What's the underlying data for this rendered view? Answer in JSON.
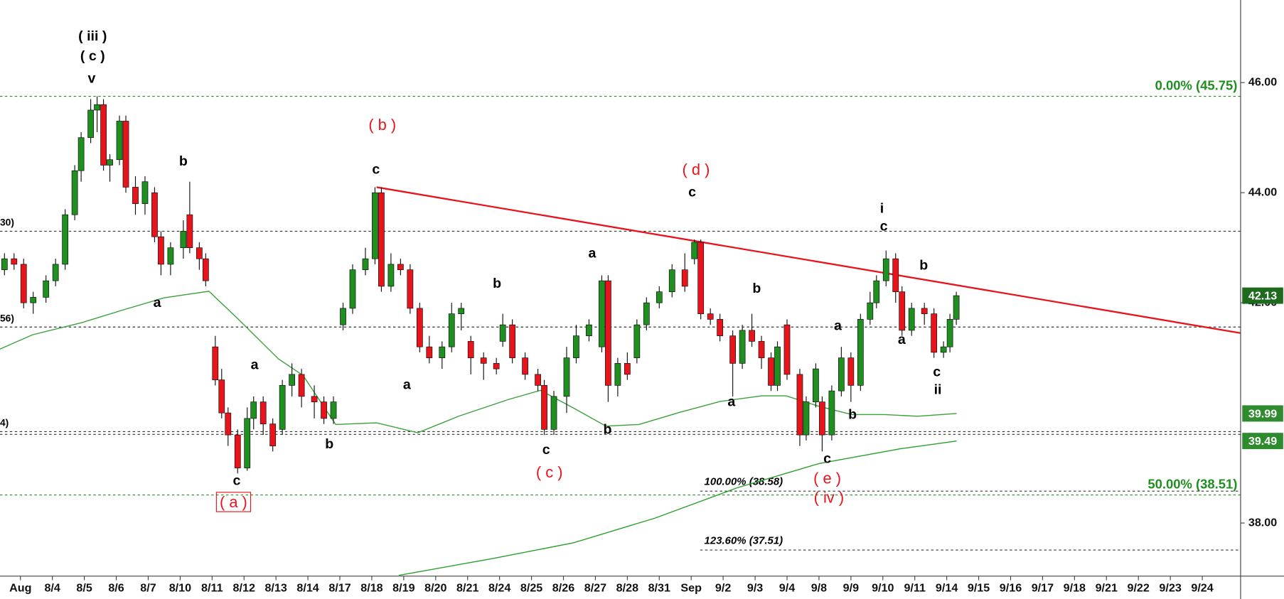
{
  "chart_data": {
    "type": "candlestick",
    "xlim": [
      -0.64,
      38.2
    ],
    "ylim": [
      37.05,
      47.5
    ],
    "xticks": [
      {
        "value": 0,
        "label": "Aug"
      },
      {
        "value": 1,
        "label": "8/4"
      },
      {
        "value": 2,
        "label": "8/5"
      },
      {
        "value": 3,
        "label": "8/6"
      },
      {
        "value": 4,
        "label": "8/7"
      },
      {
        "value": 5,
        "label": "8/10"
      },
      {
        "value": 6,
        "label": "8/11"
      },
      {
        "value": 7,
        "label": "8/12"
      },
      {
        "value": 8,
        "label": "8/13"
      },
      {
        "value": 9,
        "label": "8/14"
      },
      {
        "value": 10,
        "label": "8/17"
      },
      {
        "value": 11,
        "label": "8/18"
      },
      {
        "value": 12,
        "label": "8/19"
      },
      {
        "value": 13,
        "label": "8/20"
      },
      {
        "value": 14,
        "label": "8/21"
      },
      {
        "value": 15,
        "label": "8/24"
      },
      {
        "value": 16,
        "label": "8/25"
      },
      {
        "value": 17,
        "label": "8/26"
      },
      {
        "value": 18,
        "label": "8/27"
      },
      {
        "value": 19,
        "label": "8/28"
      },
      {
        "value": 20,
        "label": "8/31"
      },
      {
        "value": 21,
        "label": "Sep"
      },
      {
        "value": 22,
        "label": "9/2"
      },
      {
        "value": 23,
        "label": "9/3"
      },
      {
        "value": 24,
        "label": "9/4"
      },
      {
        "value": 25,
        "label": "9/8"
      },
      {
        "value": 26,
        "label": "9/9"
      },
      {
        "value": 27,
        "label": "9/10"
      },
      {
        "value": 28,
        "label": "9/11"
      },
      {
        "value": 29,
        "label": "9/14"
      },
      {
        "value": 30,
        "label": "9/15"
      },
      {
        "value": 31,
        "label": "9/16"
      },
      {
        "value": 32,
        "label": "9/17"
      },
      {
        "value": 33,
        "label": "9/18"
      },
      {
        "value": 34,
        "label": "9/21"
      },
      {
        "value": 35,
        "label": "9/22"
      },
      {
        "value": 36,
        "label": "9/23"
      },
      {
        "value": 37,
        "label": "9/24"
      }
    ],
    "yticks": [
      {
        "value": 38,
        "label": "38.00"
      },
      {
        "value": 42,
        "label": "42.00"
      },
      {
        "value": 44,
        "label": "44.00"
      },
      {
        "value": 46,
        "label": "46.00"
      }
    ],
    "candles": {
      "up_color": "#1f8f1f",
      "down_color": "#e8141c",
      "label_color": "#1e6b1e",
      "x": [
        -0.5,
        -0.2,
        0.1,
        0.4,
        0.8,
        1.1,
        1.4,
        1.7,
        1.9,
        2.2,
        2.4,
        2.6,
        2.8,
        3.1,
        3.3,
        3.6,
        3.9,
        4.2,
        4.4,
        4.7,
        5.1,
        5.3,
        5.6,
        5.8,
        6.1,
        6.3,
        6.5,
        6.8,
        7.1,
        7.3,
        7.6,
        7.9,
        8.2,
        8.5,
        8.8,
        9.2,
        9.5,
        9.8,
        10.1,
        10.4,
        10.8,
        11.1,
        11.3,
        11.6,
        11.9,
        12.2,
        12.5,
        12.8,
        13.2,
        13.5,
        13.8,
        14.1,
        14.5,
        14.9,
        15.1,
        15.4,
        15.8,
        16.2,
        16.4,
        16.7,
        17.1,
        17.4,
        17.8,
        18.2,
        18.4,
        18.7,
        19.0,
        19.3,
        19.6,
        20.0,
        20.4,
        20.8,
        21.1,
        21.3,
        21.6,
        21.9,
        22.3,
        22.6,
        22.9,
        23.2,
        23.5,
        23.7,
        24.0,
        24.4,
        24.6,
        24.9,
        25.1,
        25.4,
        25.7,
        26.0,
        26.3,
        26.6,
        26.8,
        27.1,
        27.4,
        27.6,
        27.9,
        28.3,
        28.6,
        28.9,
        29.1,
        29.3
      ],
      "open": [
        42.6,
        42.8,
        42.7,
        42.0,
        42.1,
        42.4,
        42.7,
        43.6,
        44.4,
        45.0,
        45.5,
        45.6,
        44.5,
        44.6,
        45.3,
        44.1,
        43.8,
        44.0,
        43.2,
        42.7,
        43.0,
        43.6,
        43.0,
        42.8,
        41.2,
        40.6,
        40.0,
        39.6,
        39.0,
        39.9,
        40.2,
        39.8,
        39.7,
        40.5,
        40.7,
        40.3,
        40.2,
        39.9,
        41.6,
        41.9,
        42.6,
        42.8,
        44.0,
        42.3,
        42.7,
        42.6,
        41.9,
        41.2,
        41.0,
        41.2,
        41.8,
        41.3,
        41.0,
        40.9,
        41.3,
        41.6,
        41.0,
        40.7,
        40.5,
        39.7,
        40.3,
        41.0,
        41.4,
        41.2,
        42.4,
        40.5,
        40.9,
        41.0,
        41.6,
        42.0,
        42.2,
        42.6,
        42.8,
        43.1,
        41.8,
        41.7,
        41.4,
        40.9,
        41.5,
        41.3,
        41.0,
        40.5,
        41.6,
        40.7,
        39.6,
        40.2,
        40.2,
        39.6,
        40.4,
        41.0,
        40.5,
        41.7,
        42.0,
        42.4,
        42.8,
        42.2,
        41.5,
        41.9,
        41.8,
        41.1,
        41.2,
        41.7
      ],
      "high": [
        42.9,
        42.9,
        42.8,
        42.2,
        42.5,
        42.8,
        43.7,
        44.5,
        45.1,
        45.7,
        45.75,
        45.7,
        44.7,
        45.4,
        45.4,
        44.3,
        44.3,
        44.1,
        43.3,
        43.1,
        43.5,
        44.2,
        43.1,
        42.9,
        41.4,
        40.8,
        40.1,
        39.7,
        40.1,
        40.3,
        40.3,
        39.9,
        40.6,
        40.9,
        40.8,
        40.5,
        40.3,
        40.3,
        42.0,
        42.7,
        43.0,
        44.1,
        44.1,
        42.9,
        42.8,
        42.7,
        42.0,
        41.4,
        41.3,
        42.0,
        42.0,
        41.4,
        41.1,
        41.0,
        41.8,
        41.7,
        41.1,
        40.8,
        40.6,
        40.4,
        41.2,
        41.6,
        41.7,
        42.5,
        42.5,
        41.0,
        41.1,
        41.7,
        42.1,
        42.3,
        42.7,
        42.9,
        43.15,
        43.15,
        41.9,
        41.8,
        41.5,
        41.6,
        41.8,
        41.4,
        41.1,
        41.3,
        41.7,
        40.8,
        40.3,
        40.9,
        40.3,
        40.5,
        41.2,
        41.1,
        41.8,
        42.2,
        42.5,
        42.95,
        42.9,
        42.3,
        42.0,
        42.0,
        41.9,
        41.3,
        41.8,
        42.2
      ],
      "low": [
        42.5,
        42.6,
        41.9,
        41.8,
        42.0,
        42.3,
        42.6,
        43.5,
        44.2,
        44.9,
        45.1,
        44.4,
        44.2,
        44.5,
        44.0,
        43.6,
        43.6,
        43.1,
        42.5,
        42.5,
        42.8,
        42.9,
        42.6,
        42.3,
        40.5,
        39.9,
        39.4,
        38.9,
        38.95,
        39.7,
        39.6,
        39.3,
        39.6,
        40.3,
        40.1,
        39.9,
        39.8,
        39.8,
        41.5,
        41.8,
        42.5,
        42.7,
        42.2,
        42.2,
        42.5,
        41.8,
        41.1,
        40.9,
        40.8,
        41.1,
        41.5,
        40.7,
        40.6,
        40.7,
        41.2,
        40.9,
        40.6,
        40.4,
        39.6,
        39.6,
        40.0,
        40.9,
        41.3,
        41.1,
        40.2,
        40.3,
        40.6,
        40.9,
        41.5,
        41.9,
        42.1,
        42.2,
        42.7,
        41.7,
        41.6,
        41.3,
        40.3,
        40.8,
        41.2,
        40.8,
        40.4,
        40.4,
        40.6,
        39.4,
        39.5,
        40.1,
        39.3,
        39.5,
        40.3,
        40.2,
        40.4,
        41.6,
        41.9,
        42.3,
        42.0,
        41.4,
        41.4,
        41.6,
        41.0,
        41.0,
        41.1,
        41.6
      ],
      "close": [
        42.8,
        42.7,
        42.0,
        42.1,
        42.4,
        42.7,
        43.6,
        44.4,
        45.0,
        45.5,
        45.6,
        44.5,
        44.6,
        45.3,
        44.1,
        43.8,
        44.2,
        43.2,
        42.7,
        43.0,
        43.3,
        43.0,
        42.8,
        42.4,
        40.6,
        40.0,
        39.6,
        39.0,
        39.9,
        40.2,
        39.8,
        39.4,
        40.5,
        40.7,
        40.3,
        40.2,
        39.9,
        40.2,
        41.9,
        42.6,
        42.8,
        44.0,
        42.3,
        42.7,
        42.6,
        41.9,
        41.2,
        41.0,
        41.2,
        41.8,
        41.9,
        41.0,
        40.9,
        40.8,
        41.6,
        41.0,
        40.7,
        40.5,
        39.7,
        40.3,
        41.0,
        41.4,
        41.6,
        42.4,
        40.5,
        40.9,
        40.7,
        41.6,
        42.0,
        42.2,
        42.6,
        42.3,
        43.1,
        41.8,
        41.7,
        41.4,
        40.9,
        41.5,
        41.3,
        41.0,
        40.5,
        41.2,
        40.7,
        39.6,
        40.2,
        40.8,
        39.6,
        40.4,
        41.0,
        40.5,
        41.7,
        42.0,
        42.4,
        42.8,
        42.2,
        41.5,
        41.9,
        41.8,
        41.1,
        41.2,
        41.7,
        42.13
      ]
    },
    "series": [
      {
        "color": "#3aa03a",
        "label_color": "#2e8b2e",
        "x": [
          -0.64,
          0.38,
          1.92,
          3.21,
          4.49,
          5.9,
          6.79,
          8.08,
          8.85,
          9.87,
          11.15,
          12.44,
          13.72,
          15.26,
          16.28,
          17.31,
          18.33,
          19.36,
          20.64,
          21.92,
          23.21,
          23.97,
          25.0,
          26.03,
          27.05,
          28.08,
          29.31
        ],
        "values": [
          41.16,
          41.42,
          41.64,
          41.87,
          42.09,
          42.21,
          41.72,
          40.98,
          40.68,
          39.79,
          39.82,
          39.64,
          39.94,
          40.24,
          40.41,
          40.09,
          39.76,
          39.79,
          40.01,
          40.21,
          40.31,
          40.31,
          40.12,
          39.97,
          39.97,
          39.94,
          39.99
        ]
      },
      {
        "color": "#2aa02a",
        "label_color": "#2e8b2e",
        "x": [
          11.85,
          14.74,
          17.31,
          19.87,
          22.44,
          25.0,
          27.56,
          29.31
        ],
        "values": [
          37.05,
          37.35,
          37.64,
          38.09,
          38.64,
          39.08,
          39.35,
          39.49
        ]
      }
    ],
    "trendline": {
      "color": "#e8141c",
      "x": [
        11.15,
        38.2
      ],
      "values": [
        44.1,
        41.45
      ]
    },
    "levels": [
      {
        "value": 45.75,
        "label": "0.00% (45.75)",
        "color": "#1f8f1f",
        "label_position": "right"
      },
      {
        "value": 43.3,
        "label": "30)",
        "color": "#333333",
        "label_position": "left"
      },
      {
        "value": 41.56,
        "label": "56)",
        "color": "#333333",
        "label_position": "left"
      },
      {
        "value": 39.66,
        "label": "4)",
        "color": "#333333",
        "label_position": "left"
      },
      {
        "value": 39.61,
        "color": "#333333"
      },
      {
        "value": 38.51,
        "label": "50.00% (38.51)",
        "color": "#1f8f1f",
        "label_position": "right"
      },
      {
        "value": 38.58,
        "label": "100.00% (38.58)",
        "color": "#333333",
        "label_position": "start",
        "x_start": 21.28
      },
      {
        "value": 37.51,
        "label": "123.60% (37.51)",
        "color": "#333333",
        "label_position": "start",
        "x_start": 21.28
      }
    ],
    "annotations": [
      {
        "text": "( iii )",
        "x": 2.26,
        "y": 46.83,
        "color": "#000000"
      },
      {
        "text": "( c )",
        "x": 2.26,
        "y": 46.47,
        "color": "#000000"
      },
      {
        "text": "v",
        "x": 2.23,
        "y": 46.06,
        "color": "#000000"
      },
      {
        "text": "b",
        "x": 5.1,
        "y": 44.56,
        "color": "#000000"
      },
      {
        "text": "a",
        "x": 4.28,
        "y": 41.99,
        "color": "#000000"
      },
      {
        "text": "( b )",
        "x": 11.33,
        "y": 45.21,
        "color": "#e8141c"
      },
      {
        "text": "c",
        "x": 11.13,
        "y": 44.41,
        "color": "#000000"
      },
      {
        "text": "a",
        "x": 7.33,
        "y": 40.86,
        "color": "#000000"
      },
      {
        "text": "c",
        "x": 6.77,
        "y": 38.76,
        "color": "#000000"
      },
      {
        "text": "( a )",
        "x": 6.67,
        "y": 38.36,
        "color": "#e8141c",
        "boxed": true
      },
      {
        "text": "b",
        "x": 9.67,
        "y": 39.42,
        "color": "#000000"
      },
      {
        "text": "a",
        "x": 12.1,
        "y": 40.5,
        "color": "#000000"
      },
      {
        "text": "b",
        "x": 14.92,
        "y": 42.34,
        "color": "#000000"
      },
      {
        "text": "a",
        "x": 17.9,
        "y": 42.89,
        "color": "#000000"
      },
      {
        "text": "c",
        "x": 16.46,
        "y": 39.32,
        "color": "#000000"
      },
      {
        "text": "( c )",
        "x": 16.56,
        "y": 38.9,
        "color": "#e8141c"
      },
      {
        "text": "b",
        "x": 18.38,
        "y": 39.69,
        "color": "#000000"
      },
      {
        "text": "( d )",
        "x": 21.15,
        "y": 44.4,
        "color": "#e8141c"
      },
      {
        "text": "c",
        "x": 21.03,
        "y": 44.0,
        "color": "#000000"
      },
      {
        "text": "b",
        "x": 23.05,
        "y": 42.25,
        "color": "#000000"
      },
      {
        "text": "a",
        "x": 22.26,
        "y": 40.19,
        "color": "#000000"
      },
      {
        "text": "a",
        "x": 25.59,
        "y": 41.57,
        "color": "#000000"
      },
      {
        "text": "b",
        "x": 26.05,
        "y": 39.96,
        "color": "#000000"
      },
      {
        "text": "c",
        "x": 25.26,
        "y": 39.16,
        "color": "#000000"
      },
      {
        "text": "( e )",
        "x": 25.26,
        "y": 38.79,
        "color": "#e8141c"
      },
      {
        "text": "( iv )",
        "x": 25.31,
        "y": 38.44,
        "color": "#e8141c"
      },
      {
        "text": "i",
        "x": 26.97,
        "y": 43.7,
        "color": "#000000"
      },
      {
        "text": "c",
        "x": 27.03,
        "y": 43.38,
        "color": "#000000"
      },
      {
        "text": "b",
        "x": 28.28,
        "y": 42.67,
        "color": "#000000"
      },
      {
        "text": "a",
        "x": 27.59,
        "y": 41.32,
        "color": "#000000"
      },
      {
        "text": "c",
        "x": 28.69,
        "y": 40.73,
        "color": "#000000"
      },
      {
        "text": "ii",
        "x": 28.72,
        "y": 40.41,
        "color": "#000000"
      }
    ]
  }
}
